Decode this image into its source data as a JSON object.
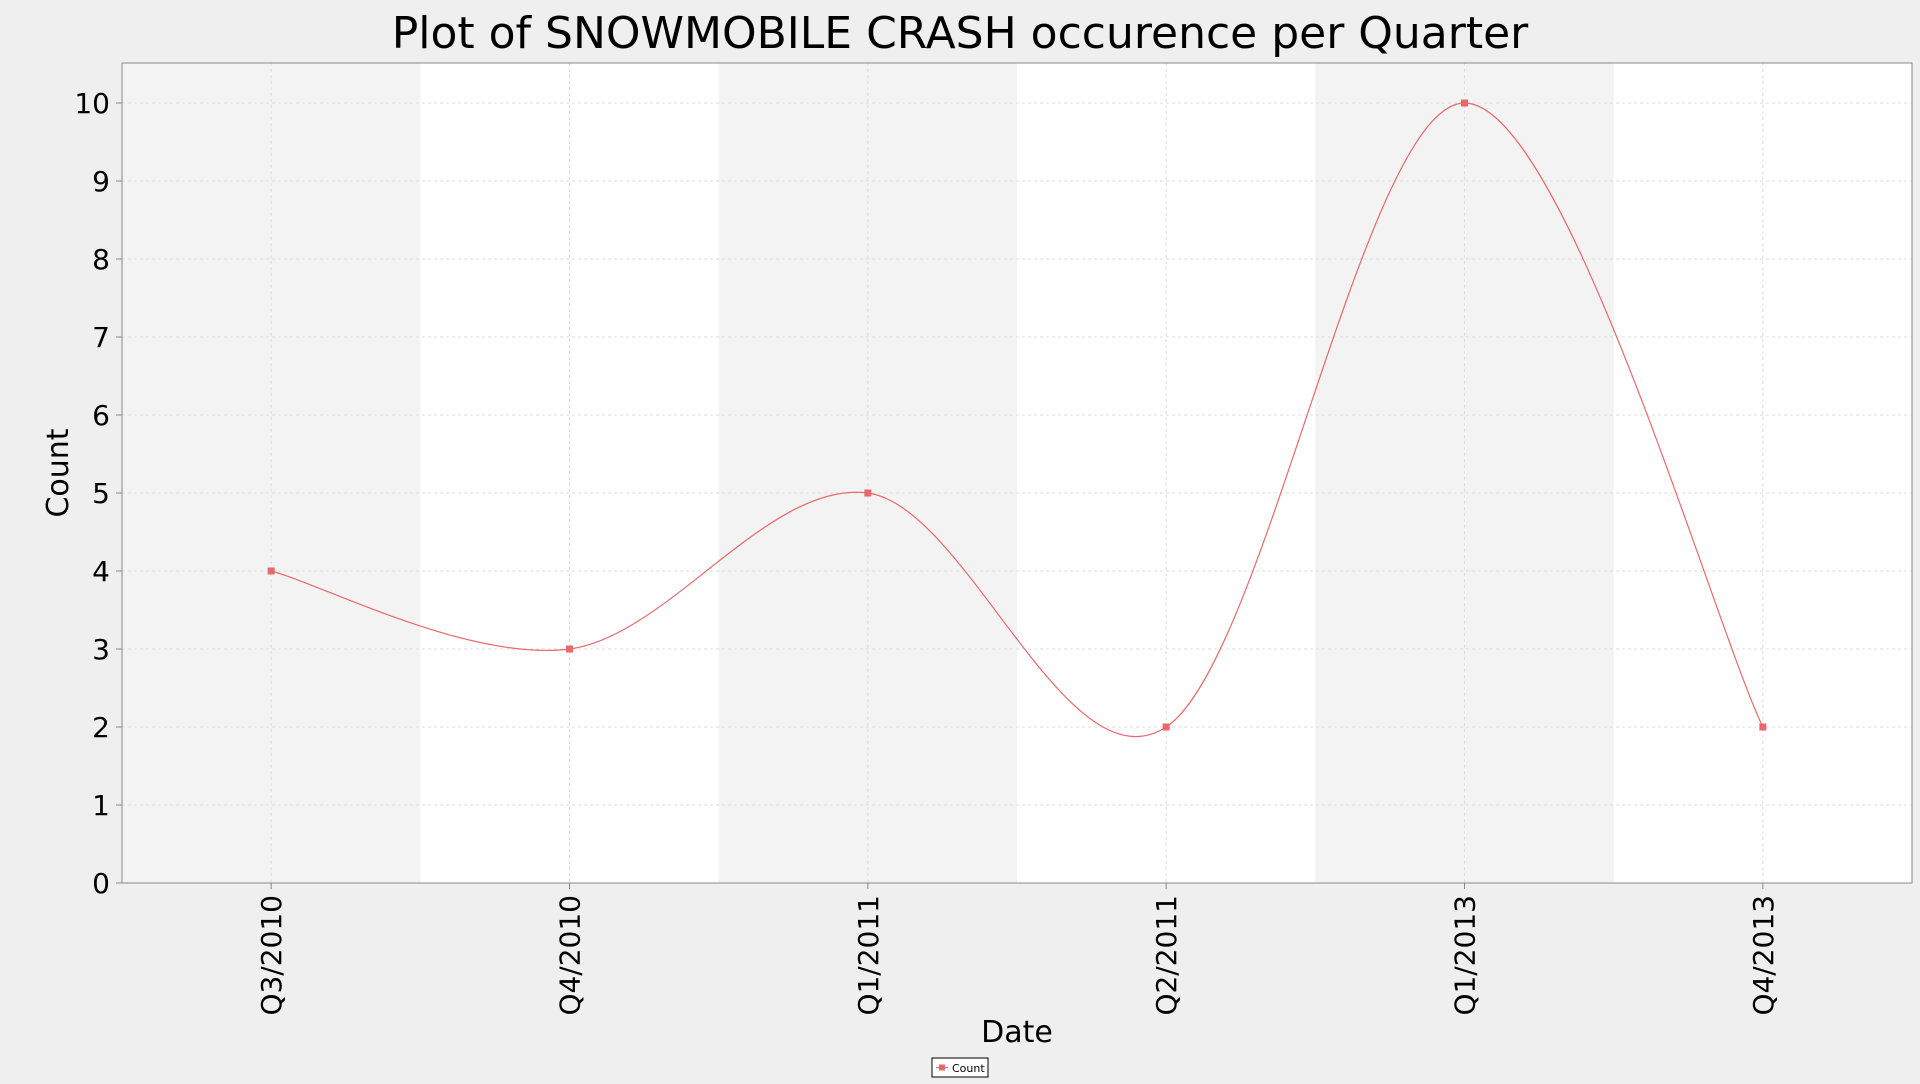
{
  "chart_data": {
    "type": "line",
    "title": "Plot of SNOWMOBILE CRASH occurence per Quarter",
    "xlabel": "Date",
    "ylabel": "Count",
    "categories": [
      "Q3/2010",
      "Q4/2010",
      "Q1/2011",
      "Q2/2011",
      "Q1/2013",
      "Q4/2013"
    ],
    "series": [
      {
        "name": "Count",
        "values": [
          4,
          3,
          5,
          2,
          10,
          2
        ],
        "color": "#e8696b"
      }
    ],
    "ylim": [
      0,
      10.5
    ],
    "yticks": [
      0,
      1,
      2,
      3,
      4,
      5,
      6,
      7,
      8,
      9,
      10
    ],
    "grid": true,
    "smoothed": true,
    "legend_position": "bottom-center",
    "band_colors": [
      "#f3f3f3",
      "#ffffff"
    ]
  }
}
